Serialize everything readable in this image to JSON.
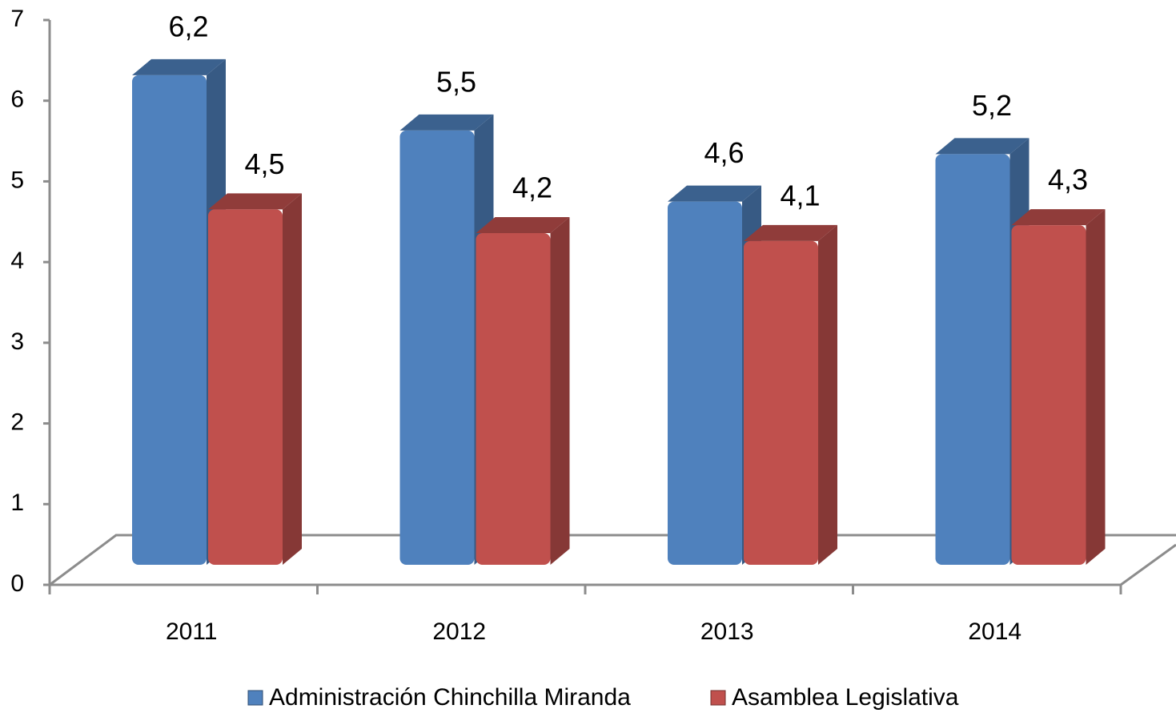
{
  "chart_data": {
    "type": "bar3d",
    "categories": [
      "2011",
      "2012",
      "2013",
      "2014"
    ],
    "series": [
      {
        "name": "Administración Chinchilla Miranda",
        "color": "#4f81bd",
        "values": [
          6.2,
          5.5,
          4.6,
          5.2
        ],
        "value_labels": [
          "6,2",
          "5,5",
          "4,6",
          "5,2"
        ]
      },
      {
        "name": "Asamblea Legislativa",
        "color": "#c0504d",
        "values": [
          4.5,
          4.2,
          4.1,
          4.3
        ],
        "value_labels": [
          "4,5",
          "4,2",
          "4,1",
          "4,3"
        ]
      }
    ],
    "ylim": [
      0,
      7
    ],
    "yticks": [
      0,
      1,
      2,
      3,
      4,
      5,
      6,
      7
    ],
    "legend": "bottom"
  }
}
